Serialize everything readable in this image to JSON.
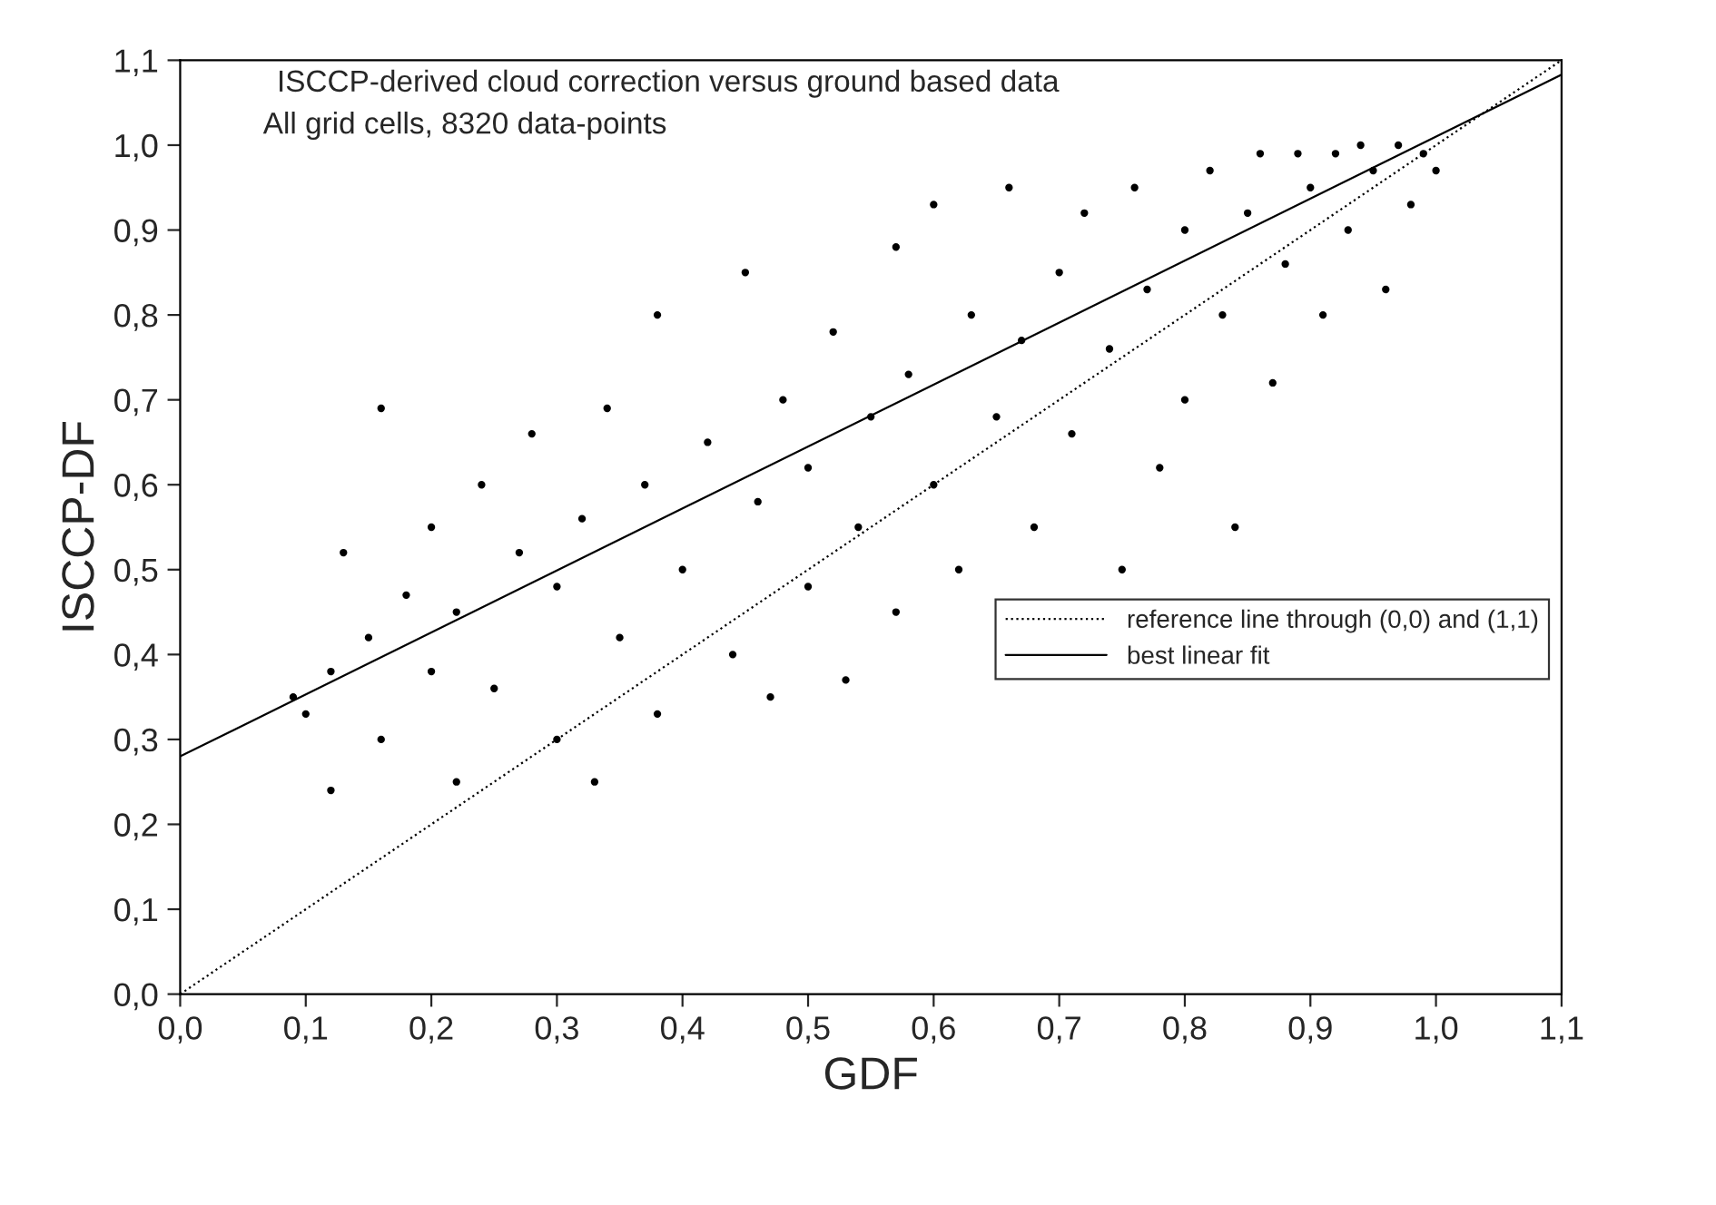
{
  "chart_data": {
    "type": "scatter",
    "title": "ISCCP-derived cloud correction versus ground based data",
    "subtitle": "All grid cells, 8320 data-points",
    "xlabel": "GDF",
    "ylabel": "ISCCP-DF",
    "xlim": [
      0,
      1.1
    ],
    "ylim": [
      0,
      1.1
    ],
    "xticks": [
      {
        "value": 0,
        "label": "0,0"
      },
      {
        "value": 0.1,
        "label": "0,1"
      },
      {
        "value": 0.2,
        "label": "0,2"
      },
      {
        "value": 0.3,
        "label": "0,3"
      },
      {
        "value": 0.4,
        "label": "0,4"
      },
      {
        "value": 0.5,
        "label": "0,5"
      },
      {
        "value": 0.6,
        "label": "0,6"
      },
      {
        "value": 0.7,
        "label": "0,7"
      },
      {
        "value": 0.8,
        "label": "0,8"
      },
      {
        "value": 0.9,
        "label": "0,9"
      },
      {
        "value": 1.0,
        "label": "1,0"
      },
      {
        "value": 1.1,
        "label": "1,1"
      }
    ],
    "yticks": [
      {
        "value": 0,
        "label": "0,0"
      },
      {
        "value": 0.1,
        "label": "0,1"
      },
      {
        "value": 0.2,
        "label": "0,2"
      },
      {
        "value": 0.3,
        "label": "0,3"
      },
      {
        "value": 0.4,
        "label": "0,4"
      },
      {
        "value": 0.5,
        "label": "0,5"
      },
      {
        "value": 0.6,
        "label": "0,6"
      },
      {
        "value": 0.7,
        "label": "0,7"
      },
      {
        "value": 0.8,
        "label": "0,8"
      },
      {
        "value": 0.9,
        "label": "0,9"
      },
      {
        "value": 1.0,
        "label": "1,0"
      },
      {
        "value": 1.1,
        "label": "1,1"
      }
    ],
    "grid": false,
    "legend": "right",
    "marker": "circle",
    "series": [
      {
        "color": "#000000",
        "x": [
          0.09,
          0.1,
          0.12,
          0.12,
          0.13,
          0.15,
          0.16,
          0.16,
          0.18,
          0.2,
          0.2,
          0.22,
          0.22,
          0.24,
          0.25,
          0.27,
          0.28,
          0.3,
          0.3,
          0.32,
          0.33,
          0.34,
          0.35,
          0.37,
          0.38,
          0.38,
          0.4,
          0.42,
          0.44,
          0.45,
          0.46,
          0.47,
          0.48,
          0.5,
          0.5,
          0.52,
          0.53,
          0.54,
          0.55,
          0.57,
          0.57,
          0.58,
          0.6,
          0.6,
          0.62,
          0.63,
          0.65,
          0.66,
          0.67,
          0.68,
          0.7,
          0.71,
          0.72,
          0.74,
          0.75,
          0.76,
          0.77,
          0.78,
          0.8,
          0.8,
          0.82,
          0.83,
          0.84,
          0.85,
          0.86,
          0.87,
          0.88,
          0.89,
          0.9,
          0.91,
          0.92,
          0.93,
          0.94,
          0.95,
          0.96,
          0.97,
          0.98,
          0.99,
          1.0
        ],
        "values": [
          0.35,
          0.33,
          0.38,
          0.24,
          0.52,
          0.42,
          0.69,
          0.3,
          0.47,
          0.55,
          0.38,
          0.25,
          0.45,
          0.6,
          0.36,
          0.52,
          0.66,
          0.3,
          0.48,
          0.56,
          0.25,
          0.69,
          0.42,
          0.6,
          0.8,
          0.33,
          0.5,
          0.65,
          0.4,
          0.85,
          0.58,
          0.35,
          0.7,
          0.48,
          0.62,
          0.78,
          0.37,
          0.55,
          0.68,
          0.88,
          0.45,
          0.73,
          0.6,
          0.93,
          0.5,
          0.8,
          0.68,
          0.95,
          0.77,
          0.55,
          0.85,
          0.66,
          0.92,
          0.76,
          0.5,
          0.95,
          0.83,
          0.62,
          0.9,
          0.7,
          0.97,
          0.8,
          0.55,
          0.92,
          0.99,
          0.72,
          0.86,
          0.99,
          0.95,
          0.8,
          0.99,
          0.9,
          1.0,
          0.97,
          0.83,
          1.0,
          0.93,
          0.99,
          0.97
        ]
      },
      {
        "type": "line",
        "name": "reference line through (0,0) and (1,1)",
        "color": "#000000",
        "line_style": "dotted",
        "marker": "none",
        "x": [
          0,
          1.1
        ],
        "values": [
          0,
          1.1
        ]
      },
      {
        "type": "line",
        "name": "best linear fit",
        "color": "#000000",
        "line_style": "solid",
        "marker": "none",
        "x": [
          0,
          1.1
        ],
        "values": [
          0.28,
          1.083
        ]
      }
    ]
  }
}
